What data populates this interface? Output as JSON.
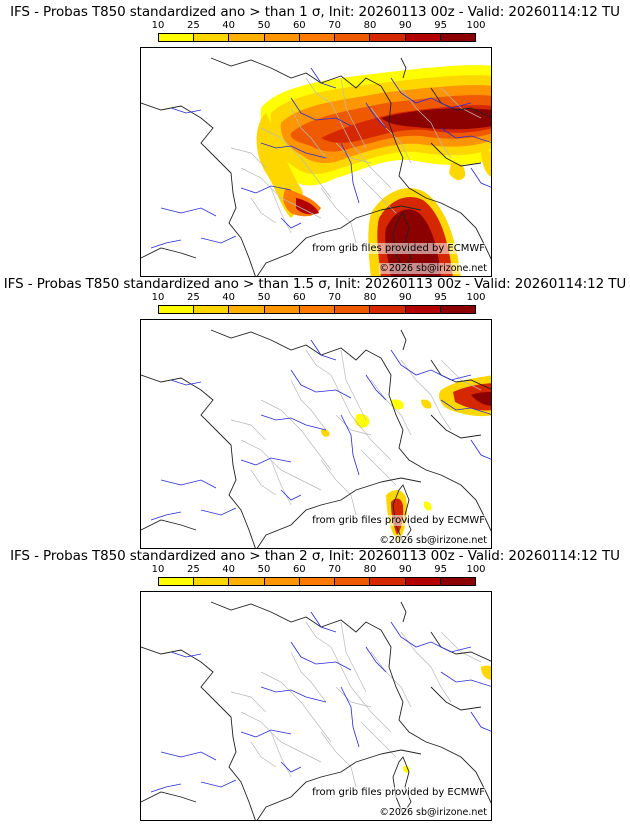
{
  "colorbar": {
    "ticks": [
      "10",
      "25",
      "40",
      "50",
      "60",
      "70",
      "80",
      "90",
      "95",
      "100"
    ],
    "colors": [
      "#ffff00",
      "#ffd700",
      "#ffb000",
      "#ff9500",
      "#ff7a00",
      "#ef5a00",
      "#d62800",
      "#b30000",
      "#8b0000"
    ]
  },
  "panels": [
    {
      "title": "IFS - Probas T850  standardized ano > than 1 σ, Init: 20260113 00z - Valid: 20260114:12 TU",
      "credit": "from grib files provided by ECMWF",
      "copyright": "©2026 sb@irizone.net"
    },
    {
      "title": "IFS - Probas T850  standardized ano > than 1.5 σ, Init: 20260113 00z - Valid: 20260114:12 TU",
      "credit": "from grib files provided by ECMWF",
      "copyright": "©2026 sb@irizone.net"
    },
    {
      "title": "IFS - Probas T850  standardized ano > than 2 σ, Init: 20260113 00z - Valid: 20260114:12 TU",
      "credit": "from grib files provided by ECMWF",
      "copyright": "©2026 sb@irizone.net"
    }
  ]
}
